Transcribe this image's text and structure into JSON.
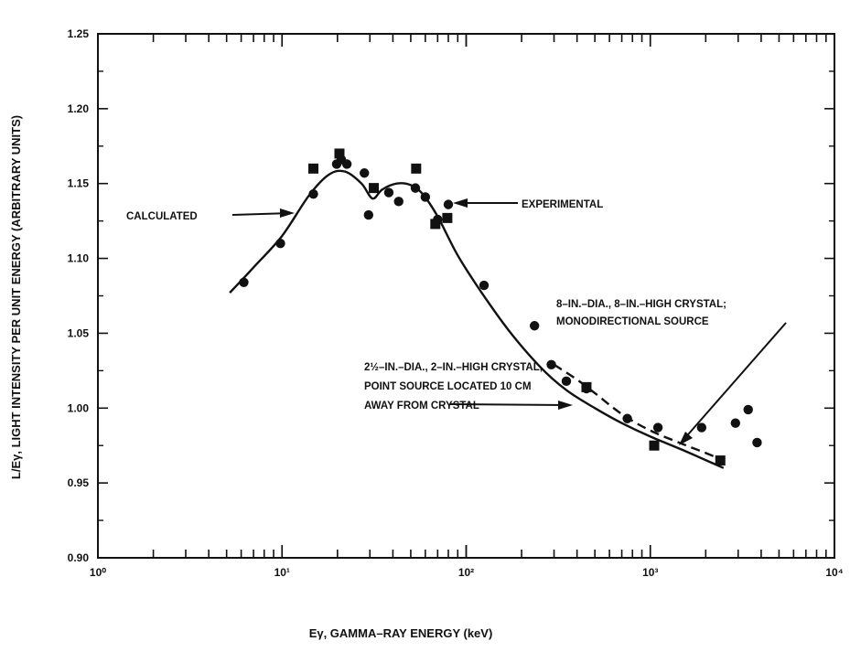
{
  "chart_data": {
    "type": "scatter",
    "title": "",
    "xlabel": "Eγ, GAMMA–RAY ENERGY (keV)",
    "ylabel": "L/Eγ, LIGHT INTENSITY PER UNIT ENERGY (ARBITRARY UNITS)",
    "xscale": "log",
    "xlim": [
      1,
      10000
    ],
    "ylim": [
      0.9,
      1.25
    ],
    "x_tick_labels": [
      "10⁰",
      "10¹",
      "10²",
      "10³",
      "10⁴"
    ],
    "x_tick_values": [
      1,
      10,
      100,
      1000,
      10000
    ],
    "y_tick_labels": [
      "0.90",
      "0.95",
      "1.00",
      "1.05",
      "1.10",
      "1.15",
      "1.20",
      "1.25"
    ],
    "y_tick_values": [
      0.9,
      0.95,
      1.0,
      1.05,
      1.1,
      1.15,
      1.2,
      1.25
    ],
    "grid": false,
    "series": [
      {
        "name": "CALCULATED",
        "kind": "solid-line",
        "x": [
          5.2,
          7,
          10,
          14,
          18,
          22,
          27,
          31,
          35,
          42,
          50,
          58,
          70,
          90,
          120,
          170,
          250,
          350,
          500,
          700,
          1000,
          1500,
          2200,
          2500
        ],
        "y": [
          1.077,
          1.094,
          1.115,
          1.142,
          1.156,
          1.158,
          1.15,
          1.14,
          1.146,
          1.15,
          1.149,
          1.143,
          1.128,
          1.102,
          1.078,
          1.052,
          1.028,
          1.012,
          1.0,
          0.99,
          0.981,
          0.972,
          0.963,
          0.96
        ]
      },
      {
        "name": "",
        "kind": "dashed-line",
        "x": [
          300,
          400,
          500,
          700,
          1000,
          1500,
          2000,
          2500
        ],
        "y": [
          1.029,
          1.019,
          1.01,
          0.996,
          0.985,
          0.976,
          0.97,
          0.965
        ]
      },
      {
        "name": "EXPERIMENTAL",
        "kind": "circles",
        "x": [
          6.2,
          9.8,
          14.8,
          19.8,
          21,
          22.5,
          28,
          29.5,
          38,
          43,
          53,
          60,
          70,
          80,
          125,
          235,
          290,
          350,
          450,
          750,
          1100,
          1900,
          2900,
          3400,
          3800
        ],
        "y": [
          1.084,
          1.11,
          1.143,
          1.163,
          1.166,
          1.163,
          1.157,
          1.129,
          1.144,
          1.138,
          1.147,
          1.141,
          1.126,
          1.136,
          1.082,
          1.055,
          1.029,
          1.018,
          1.013,
          0.993,
          0.987,
          0.987,
          0.99,
          0.999,
          0.977
        ]
      },
      {
        "name": "",
        "kind": "squares",
        "x": [
          14.8,
          20.5,
          31.5,
          53.5,
          68,
          79,
          450,
          1050,
          2400
        ],
        "y": [
          1.16,
          1.17,
          1.147,
          1.16,
          1.123,
          1.127,
          1.014,
          0.975,
          0.965
        ]
      }
    ],
    "annotations": [
      "CALCULATED",
      "EXPERIMENTAL",
      "8–IN.–DIA., 8–IN.–HIGH CRYSTAL;",
      "MONODIRECTIONAL SOURCE",
      "2½–IN.–DIA., 2–IN.–HIGH CRYSTAL,",
      "POINT SOURCE LOCATED 10 CM",
      "AWAY FROM CRYSTAL"
    ]
  }
}
